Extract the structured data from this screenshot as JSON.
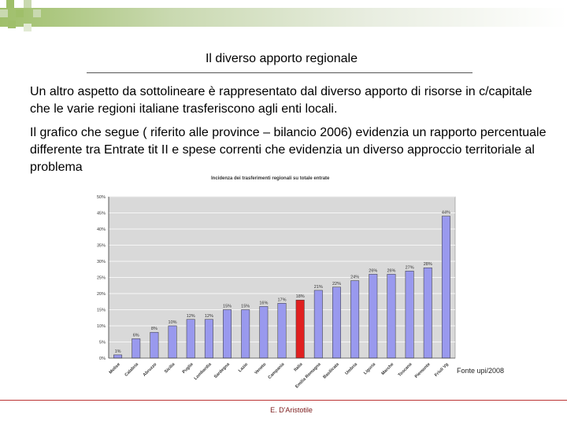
{
  "slide": {
    "title": "Il diverso apporto regionale",
    "paragraph1": "Un altro aspetto da sottolineare è rappresentato dal diverso apporto di risorse in c/capitale che le varie regioni italiane trasferiscono agli enti locali.",
    "paragraph2": "Il grafico che segue ( riferito alle province – bilancio 2006) evidenzia un rapporto percentuale differente tra Entrate tit II e spese correnti  che evidenzia un diverso approccio territoriale al problema",
    "source": "Fonte upi/2008",
    "author": "E. D'Aristotile"
  },
  "colors": {
    "bar": "#9999ee",
    "bar_highlight": "#e02020",
    "plot_bg": "#d9d9d9",
    "accent": "#9fbf6a"
  },
  "chart_data": {
    "type": "bar",
    "title": "Incidenza dei trasferimenti regionali su totale entrate",
    "categories": [
      "Molise",
      "Calabria",
      "Abruzzo",
      "Sicilia",
      "Puglia",
      "Lombardia",
      "Sardegna",
      "Lazio",
      "Veneto",
      "Campania",
      "Italia",
      "Emilia Romagna",
      "Basilicata",
      "Umbria",
      "Liguria",
      "Marche",
      "Toscana",
      "Piemonte",
      "Friuli Vg"
    ],
    "values": [
      1,
      6,
      8,
      10,
      12,
      12,
      15,
      15,
      16,
      17,
      18,
      21,
      22,
      24,
      26,
      26,
      27,
      28,
      44
    ],
    "data_labels": [
      "1%",
      "6%",
      "8%",
      "10%",
      "12%",
      "12%",
      "15%",
      "15%",
      "16%",
      "17%",
      "18%",
      "21%",
      "22%",
      "24%",
      "26%",
      "26%",
      "27%",
      "28%",
      "44%"
    ],
    "highlight": "Italia",
    "ylim": [
      0,
      50
    ],
    "yticks": [
      0,
      5,
      10,
      15,
      20,
      25,
      30,
      35,
      40,
      45,
      50
    ],
    "ytick_labels": [
      "0%",
      "5%",
      "10%",
      "15%",
      "20%",
      "25%",
      "30%",
      "35%",
      "40%",
      "45%",
      "50%"
    ],
    "grid": true,
    "legend": "none"
  }
}
